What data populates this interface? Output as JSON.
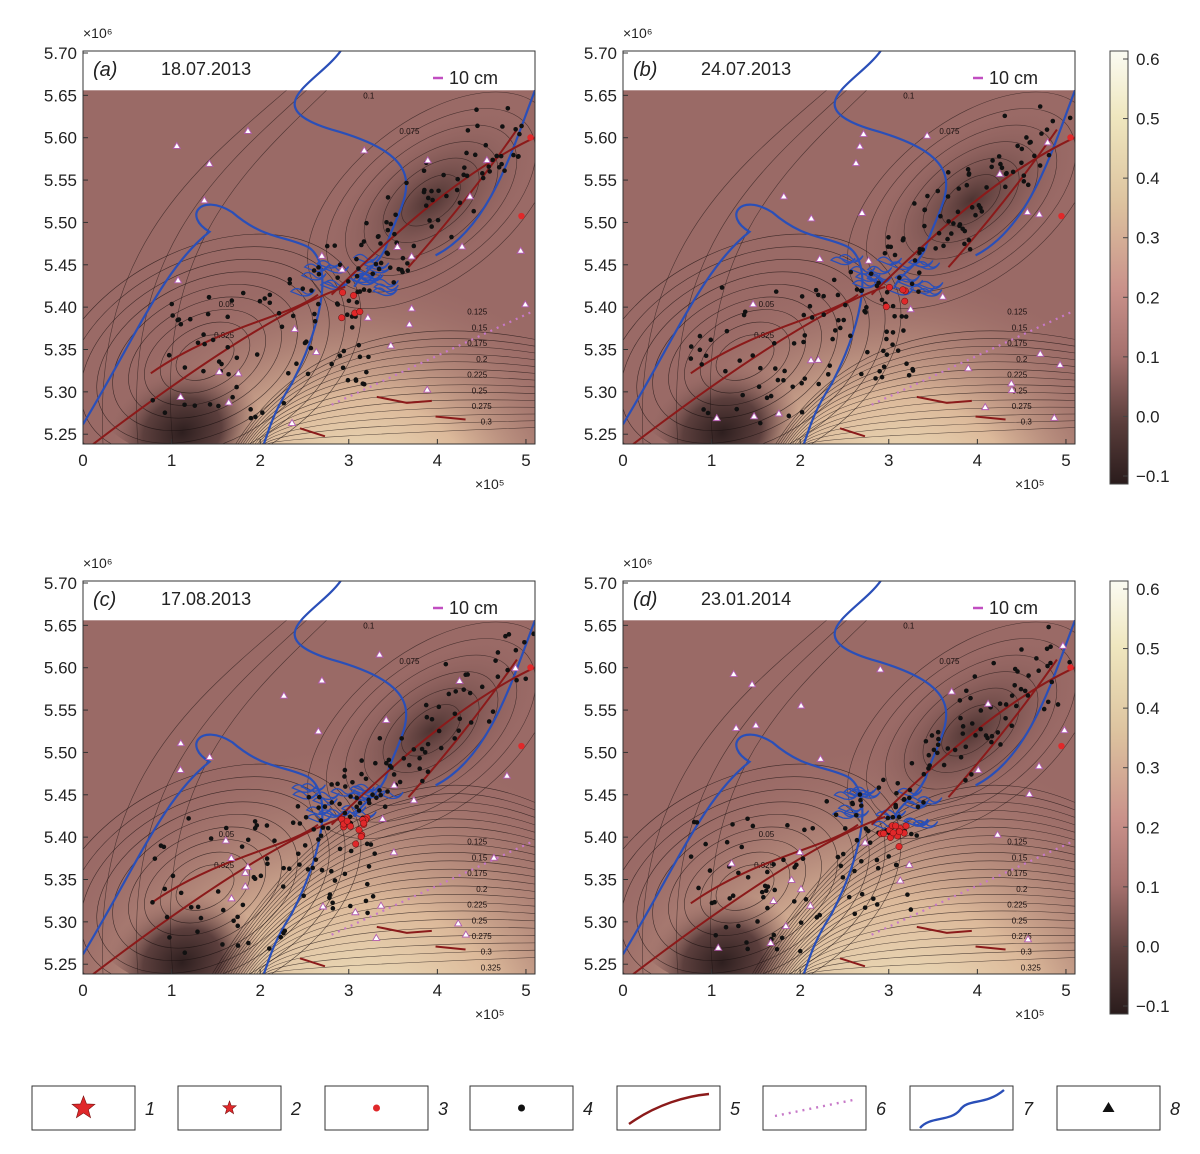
{
  "panels": [
    {
      "letter": "(a)",
      "date": "18.07.2013"
    },
    {
      "letter": "(b)",
      "date": "24.07.2013"
    },
    {
      "letter": "(c)",
      "date": "17.08.2013"
    },
    {
      "letter": "(d)",
      "date": "23.01.2014"
    }
  ],
  "scale_label": "10 cm",
  "axis": {
    "y_multiplier": "×10⁶",
    "x_multiplier": "×10⁵",
    "y_ticks": [
      "5.70",
      "5.65",
      "5.60",
      "5.55",
      "5.50",
      "5.45",
      "5.40",
      "5.35",
      "5.30",
      "5.25"
    ],
    "x_ticks": [
      "0",
      "1",
      "2",
      "3",
      "4",
      "5"
    ]
  },
  "colorbar": {
    "ticks": [
      "0.6",
      "0.5",
      "0.4",
      "0.3",
      "0.2",
      "0.1",
      "0.0",
      "−0.1"
    ],
    "range": [
      -0.1,
      0.6
    ]
  },
  "contour_labels": {
    "a": [
      "0.1",
      "0.075",
      "0.05",
      "0.025",
      "0.125",
      "0.15",
      "0.175",
      "0.2",
      "0.225",
      "0.25",
      "0.275",
      "0.3"
    ],
    "b": [
      "0.1",
      "0.075",
      "0.05",
      "0.025",
      "0.125",
      "0.15",
      "0.175",
      "0.2",
      "0.225",
      "0.25",
      "0.275",
      "0.3"
    ],
    "c": [
      "0.1",
      "0.075",
      "0.05",
      "0.025",
      "0.125",
      "0.15",
      "0.175",
      "0.2",
      "0.225",
      "0.25",
      "0.275",
      "0.3",
      "0.325"
    ],
    "d": [
      "0.1",
      "0.075",
      "0.05",
      "0.025",
      "0.125",
      "0.15",
      "0.175",
      "0.2",
      "0.225",
      "0.25",
      "0.275",
      "0.3",
      "0.325"
    ]
  },
  "legend": [
    {
      "number": "1",
      "symbol": "large-star-icon"
    },
    {
      "number": "2",
      "symbol": "small-star-icon"
    },
    {
      "number": "3",
      "symbol": "red-dot-icon"
    },
    {
      "number": "4",
      "symbol": "black-dot-icon"
    },
    {
      "number": "5",
      "symbol": "fault-line-icon"
    },
    {
      "number": "6",
      "symbol": "dotted-line-icon"
    },
    {
      "number": "7",
      "symbol": "coastline-icon"
    },
    {
      "number": "8",
      "symbol": "triangle-icon"
    }
  ],
  "colors": {
    "background_dark": "#3a2626",
    "background_mid": "#9a6a66",
    "background_light": "#efe6c2",
    "coastline": "#2a4fb8",
    "fault": "#8b1a1a",
    "event_dot": "#111111",
    "red_marker": "#e0282a",
    "dotted_line": "#c779c8"
  }
}
